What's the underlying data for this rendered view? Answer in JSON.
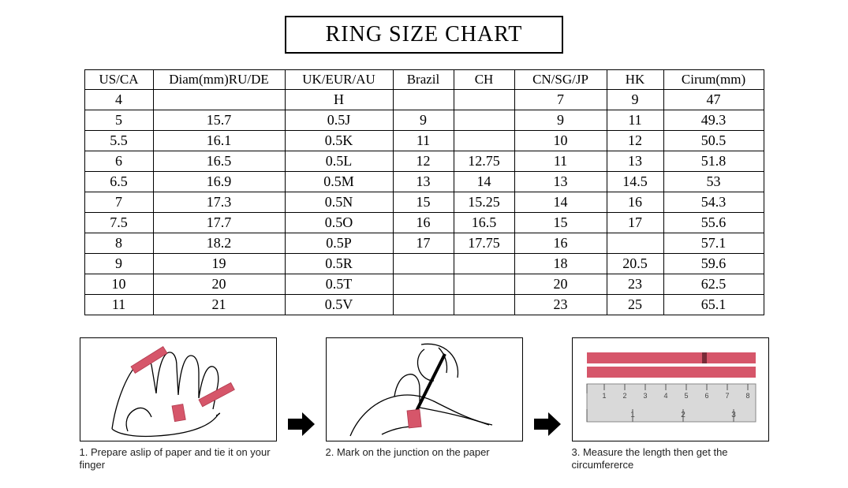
{
  "title": "RING SIZE CHART",
  "table": {
    "columns": [
      "US/CA",
      "Diam(mm)RU/DE",
      "UK/EUR/AU",
      "Brazil",
      "CH",
      "CN/SG/JP",
      "HK",
      "Cirum(mm)"
    ],
    "rows": [
      [
        "4",
        "",
        "H",
        "",
        "",
        "7",
        "9",
        "47"
      ],
      [
        "5",
        "15.7",
        "0.5J",
        "9",
        "",
        "9",
        "11",
        "49.3"
      ],
      [
        "5.5",
        "16.1",
        "0.5K",
        "11",
        "",
        "10",
        "12",
        "50.5"
      ],
      [
        "6",
        "16.5",
        "0.5L",
        "12",
        "12.75",
        "11",
        "13",
        "51.8"
      ],
      [
        "6.5",
        "16.9",
        "0.5M",
        "13",
        "14",
        "13",
        "14.5",
        "53"
      ],
      [
        "7",
        "17.3",
        "0.5N",
        "15",
        "15.25",
        "14",
        "16",
        "54.3"
      ],
      [
        "7.5",
        "17.7",
        "0.5O",
        "16",
        "16.5",
        "15",
        "17",
        "55.6"
      ],
      [
        "8",
        "18.2",
        "0.5P",
        "17",
        "17.75",
        "16",
        "",
        "57.1"
      ],
      [
        "9",
        "19",
        "0.5R",
        "",
        "",
        "18",
        "20.5",
        "59.6"
      ],
      [
        "10",
        "20",
        "0.5T",
        "",
        "",
        "20",
        "23",
        "62.5"
      ],
      [
        "11",
        "21",
        "0.5V",
        "",
        "",
        "23",
        "25",
        "65.1"
      ]
    ],
    "col_classes": [
      "col-usca",
      "col-diam",
      "col-uk",
      "col-br",
      "col-ch",
      "col-cn",
      "col-hk",
      "col-cir"
    ],
    "border_color": "#000000",
    "font_size": 18
  },
  "steps": {
    "step1_caption": "1. Prepare aslip of paper and tie it on your finger",
    "step2_caption": "2. Mark on the junction on the paper",
    "step3_caption": "3. Measure the length then get the circumfererce",
    "accent_color": "#d6566a",
    "ruler_face": "#d9d9d9",
    "ruler_tick": "#555555"
  },
  "colors": {
    "text": "#000000",
    "background": "#ffffff",
    "border": "#000000",
    "arrow": "#000000"
  }
}
